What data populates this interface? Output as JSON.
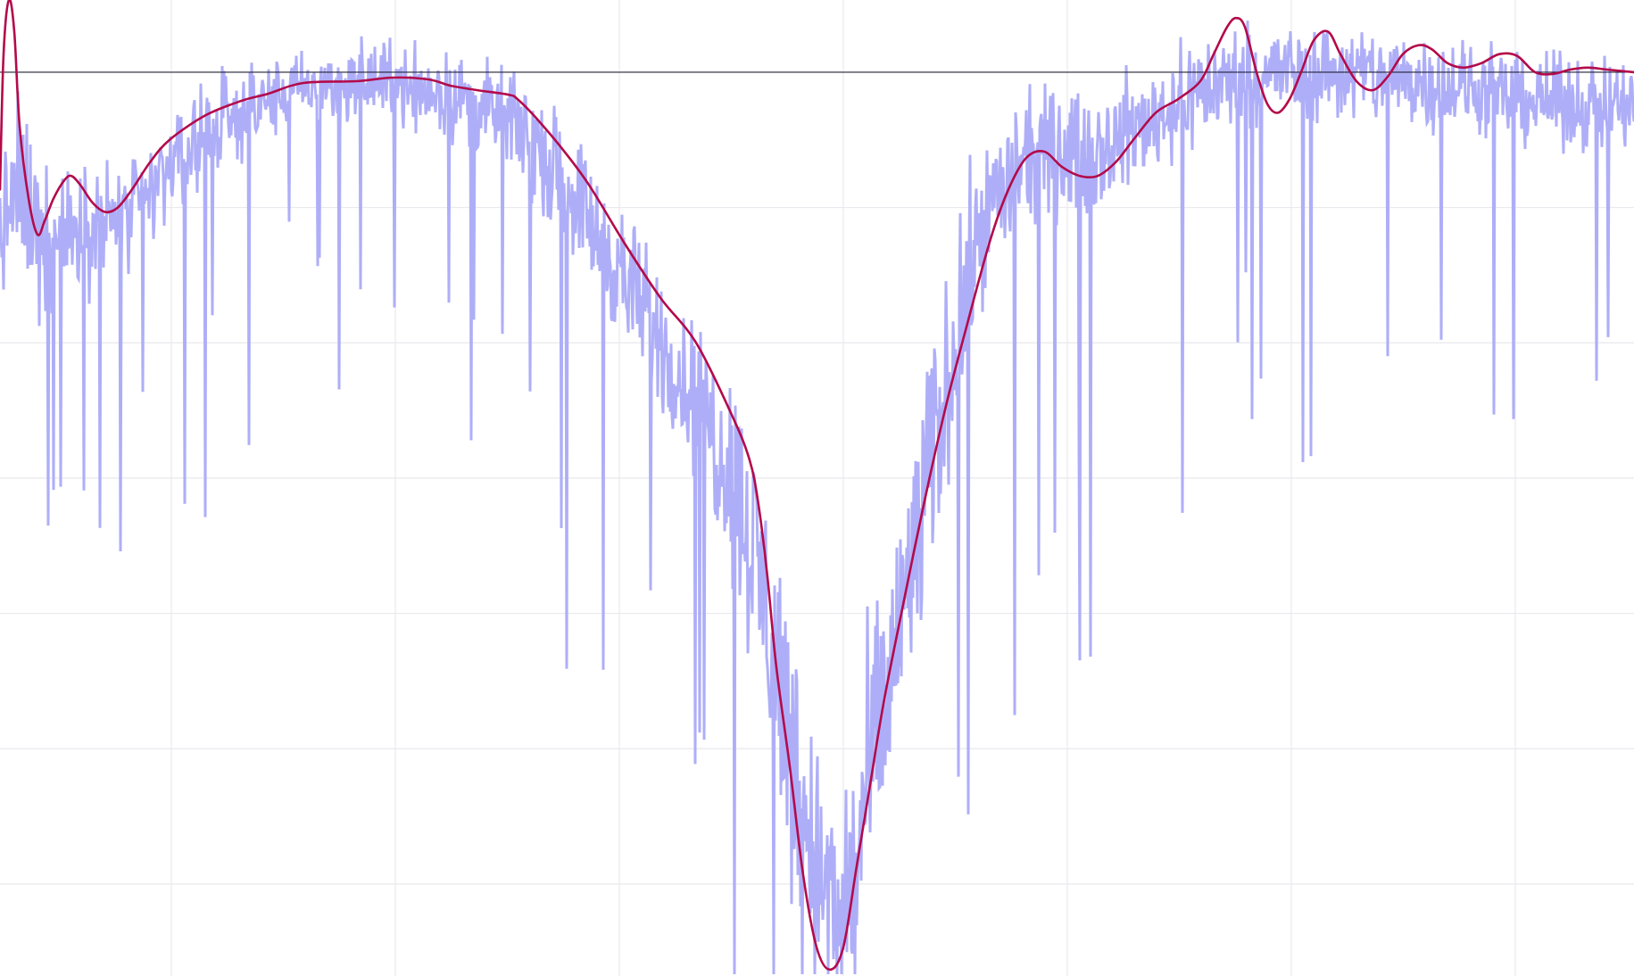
{
  "chart_data": {
    "type": "line",
    "title": "",
    "xlabel": "",
    "ylabel": "",
    "xlim": [
      0,
      1831
    ],
    "ylim": [
      -10,
      0.8
    ],
    "grid": true,
    "legend": "none",
    "baseline_y": 0,
    "x_gridlines": [
      192,
      443,
      694,
      945,
      1196,
      1447,
      1698
    ],
    "y_gridlines": [
      -1.5,
      -3,
      -4.5,
      -6,
      -7.5,
      -9
    ],
    "colors": {
      "noisy": "#aeaef8",
      "smooth": "#b30a4a",
      "grid": "#e9e9ee",
      "baseline": "#222233"
    },
    "series": [
      {
        "role": "noisy-signal",
        "envelope": [
          {
            "x": 0,
            "center": -1.8,
            "noise": 1.2
          },
          {
            "x": 20,
            "center": -1.3,
            "noise": 1.6
          },
          {
            "x": 55,
            "center": -1.9,
            "noise": 1.1
          },
          {
            "x": 100,
            "center": -1.7,
            "noise": 1.0
          },
          {
            "x": 150,
            "center": -1.6,
            "noise": 0.9
          },
          {
            "x": 200,
            "center": -0.9,
            "noise": 0.8
          },
          {
            "x": 260,
            "center": -0.5,
            "noise": 0.7
          },
          {
            "x": 330,
            "center": -0.2,
            "noise": 0.6
          },
          {
            "x": 440,
            "center": -0.1,
            "noise": 0.7
          },
          {
            "x": 520,
            "center": -0.3,
            "noise": 0.7
          },
          {
            "x": 580,
            "center": -0.6,
            "noise": 0.8
          },
          {
            "x": 640,
            "center": -1.3,
            "noise": 1.0
          },
          {
            "x": 700,
            "center": -2.3,
            "noise": 1.1
          },
          {
            "x": 760,
            "center": -3.3,
            "noise": 1.2
          },
          {
            "x": 820,
            "center": -4.4,
            "noise": 1.6
          },
          {
            "x": 860,
            "center": -6.0,
            "noise": 2.2
          },
          {
            "x": 900,
            "center": -8.2,
            "noise": 2.3
          },
          {
            "x": 940,
            "center": -9.6,
            "noise": 1.8
          },
          {
            "x": 980,
            "center": -7.6,
            "noise": 2.3
          },
          {
            "x": 1020,
            "center": -5.6,
            "noise": 2.2
          },
          {
            "x": 1060,
            "center": -3.5,
            "noise": 1.7
          },
          {
            "x": 1100,
            "center": -1.6,
            "noise": 1.3
          },
          {
            "x": 1160,
            "center": -0.9,
            "noise": 1.0
          },
          {
            "x": 1220,
            "center": -0.9,
            "noise": 1.0
          },
          {
            "x": 1280,
            "center": -0.6,
            "noise": 0.9
          },
          {
            "x": 1340,
            "center": -0.2,
            "noise": 0.9
          },
          {
            "x": 1420,
            "center": 0.0,
            "noise": 0.8
          },
          {
            "x": 1500,
            "center": 0.0,
            "noise": 0.8
          },
          {
            "x": 1600,
            "center": -0.1,
            "noise": 0.8
          },
          {
            "x": 1700,
            "center": -0.3,
            "noise": 0.7
          },
          {
            "x": 1831,
            "center": -0.4,
            "noise": 0.8
          }
        ]
      },
      {
        "role": "smoothed-trend",
        "points": [
          [
            0,
            -1.3
          ],
          [
            4,
            0.2
          ],
          [
            10,
            0.8
          ],
          [
            16,
            0.45
          ],
          [
            22,
            -0.6
          ],
          [
            32,
            -1.4
          ],
          [
            42,
            -1.8
          ],
          [
            50,
            -1.65
          ],
          [
            60,
            -1.4
          ],
          [
            72,
            -1.2
          ],
          [
            80,
            -1.15
          ],
          [
            90,
            -1.25
          ],
          [
            104,
            -1.45
          ],
          [
            118,
            -1.55
          ],
          [
            132,
            -1.5
          ],
          [
            148,
            -1.3
          ],
          [
            168,
            -1.0
          ],
          [
            190,
            -0.75
          ],
          [
            230,
            -0.48
          ],
          [
            270,
            -0.32
          ],
          [
            300,
            -0.24
          ],
          [
            340,
            -0.12
          ],
          [
            400,
            -0.1
          ],
          [
            440,
            -0.06
          ],
          [
            480,
            -0.08
          ],
          [
            505,
            -0.15
          ],
          [
            535,
            -0.2
          ],
          [
            570,
            -0.25
          ],
          [
            580,
            -0.3
          ],
          [
            600,
            -0.5
          ],
          [
            630,
            -0.85
          ],
          [
            660,
            -1.25
          ],
          [
            700,
            -1.9
          ],
          [
            740,
            -2.5
          ],
          [
            780,
            -3.0
          ],
          [
            820,
            -3.8
          ],
          [
            840,
            -4.3
          ],
          [
            850,
            -4.8
          ],
          [
            860,
            -5.6
          ],
          [
            870,
            -6.6
          ],
          [
            885,
            -7.7
          ],
          [
            900,
            -8.9
          ],
          [
            915,
            -9.7
          ],
          [
            930,
            -9.95
          ],
          [
            945,
            -9.7
          ],
          [
            960,
            -8.8
          ],
          [
            975,
            -7.9
          ],
          [
            990,
            -7.0
          ],
          [
            1010,
            -6.0
          ],
          [
            1035,
            -4.8
          ],
          [
            1060,
            -3.7
          ],
          [
            1085,
            -2.75
          ],
          [
            1110,
            -1.85
          ],
          [
            1130,
            -1.3
          ],
          [
            1150,
            -0.95
          ],
          [
            1170,
            -0.88
          ],
          [
            1190,
            -1.05
          ],
          [
            1210,
            -1.15
          ],
          [
            1230,
            -1.15
          ],
          [
            1250,
            -1.0
          ],
          [
            1270,
            -0.75
          ],
          [
            1295,
            -0.45
          ],
          [
            1320,
            -0.3
          ],
          [
            1345,
            -0.1
          ],
          [
            1360,
            0.2
          ],
          [
            1375,
            0.5
          ],
          [
            1385,
            0.6
          ],
          [
            1395,
            0.5
          ],
          [
            1408,
            0.0
          ],
          [
            1420,
            -0.35
          ],
          [
            1432,
            -0.45
          ],
          [
            1445,
            -0.3
          ],
          [
            1458,
            0.0
          ],
          [
            1472,
            0.35
          ],
          [
            1488,
            0.45
          ],
          [
            1502,
            0.2
          ],
          [
            1520,
            -0.1
          ],
          [
            1538,
            -0.2
          ],
          [
            1555,
            -0.05
          ],
          [
            1572,
            0.2
          ],
          [
            1590,
            0.3
          ],
          [
            1605,
            0.25
          ],
          [
            1622,
            0.1
          ],
          [
            1640,
            0.05
          ],
          [
            1660,
            0.1
          ],
          [
            1680,
            0.2
          ],
          [
            1700,
            0.18
          ],
          [
            1720,
            0.0
          ],
          [
            1740,
            -0.02
          ],
          [
            1760,
            0.03
          ],
          [
            1780,
            0.05
          ],
          [
            1800,
            0.03
          ],
          [
            1831,
            0.0
          ]
        ]
      }
    ]
  }
}
